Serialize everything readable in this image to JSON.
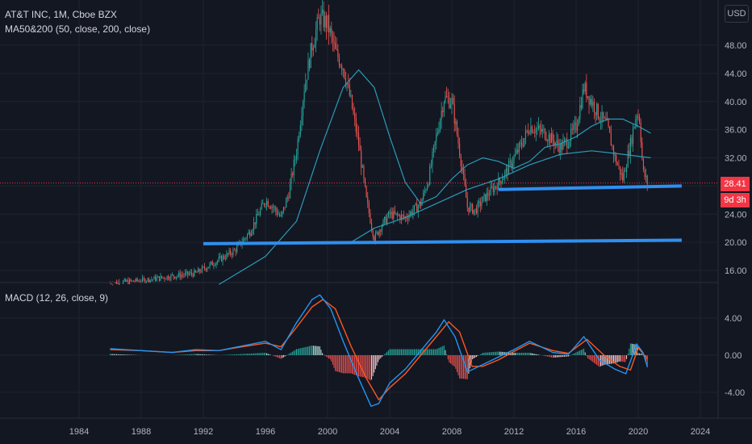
{
  "header": {
    "symbol_line": "AT&T INC, 1M, Cboe BZX",
    "ma_line": "MA50&200 (50, close, 200, close)",
    "macd_line": "MACD (12, 26, close, 9)",
    "currency_button": "USD"
  },
  "price_tags": {
    "last_price": "28.41",
    "countdown": "9d 3h"
  },
  "colors": {
    "background": "#131722",
    "grid": "#1f2330",
    "up": "#26a69a",
    "down": "#ef5350",
    "ma": "#2a9bb8",
    "trendline": "#2f8ff0",
    "macd": "#2196f3",
    "signal": "#ff5722",
    "price_tag": "#f23645"
  },
  "chart_data": [
    {
      "type": "candlestick",
      "title": "AT&T INC, 1M, Cboe BZX",
      "xlabel": "",
      "ylabel": "",
      "x_ticks": [
        "1984",
        "1988",
        "1992",
        "1996",
        "2000",
        "2004",
        "2008",
        "2012",
        "2016",
        "2020",
        "2024"
      ],
      "y_ticks": [
        "16.00",
        "20.00",
        "24.00",
        "28.00",
        "32.00",
        "36.00",
        "40.00",
        "44.00",
        "48.00"
      ],
      "ylim": [
        14,
        53
      ],
      "xlim": [
        1982.5,
        2025.2
      ],
      "grid": true,
      "last_price": 28.41,
      "close_path": [
        [
          1986.0,
          14.2
        ],
        [
          1988.0,
          14.5
        ],
        [
          1990.0,
          15.2
        ],
        [
          1991.5,
          15.6
        ],
        [
          1993.0,
          17.5
        ],
        [
          1994.0,
          18.8
        ],
        [
          1995.0,
          21.5
        ],
        [
          1996.0,
          26.0
        ],
        [
          1996.5,
          25.0
        ],
        [
          1997.0,
          23.5
        ],
        [
          1997.5,
          27.0
        ],
        [
          1998.0,
          33.0
        ],
        [
          1998.5,
          42.0
        ],
        [
          1999.0,
          48.0
        ],
        [
          1999.5,
          52.0
        ],
        [
          2000.0,
          51.0
        ],
        [
          2000.5,
          47.0
        ],
        [
          2001.0,
          45.0
        ],
        [
          2001.5,
          40.0
        ],
        [
          2002.0,
          34.0
        ],
        [
          2002.5,
          26.0
        ],
        [
          2003.0,
          20.5
        ],
        [
          2003.5,
          22.5
        ],
        [
          2004.0,
          24.0
        ],
        [
          2005.0,
          23.5
        ],
        [
          2006.0,
          25.5
        ],
        [
          2006.5,
          29.0
        ],
        [
          2007.0,
          35.0
        ],
        [
          2007.5,
          40.5
        ],
        [
          2008.0,
          40.0
        ],
        [
          2008.5,
          33.0
        ],
        [
          2009.0,
          25.0
        ],
        [
          2009.5,
          24.5
        ],
        [
          2010.0,
          26.0
        ],
        [
          2011.0,
          28.5
        ],
        [
          2011.5,
          30.0
        ],
        [
          2012.0,
          32.0
        ],
        [
          2012.5,
          34.0
        ],
        [
          2013.0,
          36.5
        ],
        [
          2014.0,
          35.5
        ],
        [
          2015.0,
          33.5
        ],
        [
          2015.5,
          34.5
        ],
        [
          2016.0,
          36.5
        ],
        [
          2016.5,
          42.0
        ],
        [
          2017.0,
          40.0
        ],
        [
          2017.5,
          38.0
        ],
        [
          2018.0,
          36.5
        ],
        [
          2018.5,
          32.0
        ],
        [
          2019.0,
          29.0
        ],
        [
          2019.5,
          34.0
        ],
        [
          2019.9,
          38.5
        ],
        [
          2020.1,
          37.5
        ],
        [
          2020.3,
          30.0
        ],
        [
          2020.6,
          28.41
        ]
      ],
      "ma50": [
        [
          1993.0,
          14.0
        ],
        [
          1996.0,
          18.0
        ],
        [
          1998.0,
          23.0
        ],
        [
          1999.5,
          33.0
        ],
        [
          2001.0,
          42.0
        ],
        [
          2002.0,
          44.5
        ],
        [
          2003.0,
          42.0
        ],
        [
          2004.0,
          35.0
        ],
        [
          2005.0,
          28.5
        ],
        [
          2006.0,
          25.5
        ],
        [
          2007.0,
          26.5
        ],
        [
          2008.0,
          29.0
        ],
        [
          2009.0,
          31.0
        ],
        [
          2010.0,
          32.0
        ],
        [
          2011.0,
          31.5
        ],
        [
          2012.0,
          30.5
        ],
        [
          2013.0,
          31.5
        ],
        [
          2014.0,
          33.5
        ],
        [
          2015.0,
          34.0
        ],
        [
          2016.0,
          35.0
        ],
        [
          2017.0,
          36.5
        ],
        [
          2018.0,
          37.5
        ],
        [
          2019.0,
          37.5
        ],
        [
          2020.0,
          36.5
        ],
        [
          2020.8,
          35.5
        ]
      ],
      "ma200": [
        [
          2001.5,
          20.0
        ],
        [
          2003.0,
          22.0
        ],
        [
          2005.0,
          23.5
        ],
        [
          2007.0,
          25.5
        ],
        [
          2009.0,
          27.5
        ],
        [
          2011.0,
          29.0
        ],
        [
          2013.0,
          31.0
        ],
        [
          2015.0,
          32.5
        ],
        [
          2017.0,
          33.0
        ],
        [
          2019.0,
          32.5
        ],
        [
          2020.8,
          32.0
        ]
      ],
      "trendlines": [
        {
          "from": [
            1992.0,
            19.8
          ],
          "to": [
            2022.8,
            20.3
          ]
        },
        {
          "from": [
            2011.0,
            27.5
          ],
          "to": [
            2022.8,
            28.0
          ]
        }
      ]
    },
    {
      "type": "macd",
      "title": "MACD (12, 26, close, 9)",
      "y_ticks": [
        "4.00",
        "0.00",
        "-4.00"
      ],
      "ylim": [
        -6.5,
        8.5
      ],
      "macd": [
        [
          1986.0,
          0.7
        ],
        [
          1988.0,
          0.5
        ],
        [
          1990.0,
          0.3
        ],
        [
          1991.5,
          0.6
        ],
        [
          1993.0,
          0.5
        ],
        [
          1994.5,
          1.0
        ],
        [
          1996.0,
          1.5
        ],
        [
          1997.0,
          0.6
        ],
        [
          1998.0,
          3.5
        ],
        [
          1999.0,
          6.0
        ],
        [
          1999.5,
          6.5
        ],
        [
          2000.2,
          5.0
        ],
        [
          2001.0,
          1.5
        ],
        [
          2002.0,
          -2.5
        ],
        [
          2002.8,
          -5.5
        ],
        [
          2003.3,
          -5.2
        ],
        [
          2004.0,
          -3.0
        ],
        [
          2005.0,
          -1.5
        ],
        [
          2006.0,
          0.5
        ],
        [
          2007.0,
          2.5
        ],
        [
          2007.5,
          3.8
        ],
        [
          2008.2,
          2.0
        ],
        [
          2009.0,
          -1.8
        ],
        [
          2010.0,
          -1.0
        ],
        [
          2011.0,
          -0.2
        ],
        [
          2012.0,
          0.6
        ],
        [
          2013.0,
          1.5
        ],
        [
          2014.5,
          0.3
        ],
        [
          2015.5,
          0.1
        ],
        [
          2016.5,
          2.0
        ],
        [
          2017.5,
          -0.5
        ],
        [
          2018.5,
          -1.5
        ],
        [
          2019.2,
          -2.0
        ],
        [
          2019.9,
          1.2
        ],
        [
          2020.3,
          0.3
        ],
        [
          2020.6,
          -1.3
        ]
      ],
      "signal": [
        [
          1986.0,
          0.6
        ],
        [
          1988.0,
          0.5
        ],
        [
          1990.0,
          0.3
        ],
        [
          1991.5,
          0.5
        ],
        [
          1993.0,
          0.5
        ],
        [
          1994.5,
          0.9
        ],
        [
          1996.0,
          1.3
        ],
        [
          1997.0,
          0.9
        ],
        [
          1998.0,
          3.0
        ],
        [
          1999.0,
          5.2
        ],
        [
          1999.7,
          6.0
        ],
        [
          2000.5,
          5.0
        ],
        [
          2001.5,
          1.0
        ],
        [
          2002.5,
          -2.5
        ],
        [
          2003.3,
          -4.8
        ],
        [
          2004.0,
          -3.5
        ],
        [
          2005.0,
          -2.0
        ],
        [
          2006.0,
          0.0
        ],
        [
          2007.0,
          2.0
        ],
        [
          2007.8,
          3.6
        ],
        [
          2008.5,
          2.5
        ],
        [
          2009.3,
          -1.2
        ],
        [
          2010.0,
          -1.2
        ],
        [
          2011.0,
          -0.5
        ],
        [
          2012.0,
          0.4
        ],
        [
          2013.0,
          1.3
        ],
        [
          2014.5,
          0.5
        ],
        [
          2015.5,
          0.2
        ],
        [
          2016.7,
          1.7
        ],
        [
          2017.8,
          0.0
        ],
        [
          2018.8,
          -1.2
        ],
        [
          2019.5,
          -1.6
        ],
        [
          2020.0,
          0.8
        ],
        [
          2020.6,
          -0.4
        ]
      ]
    }
  ]
}
